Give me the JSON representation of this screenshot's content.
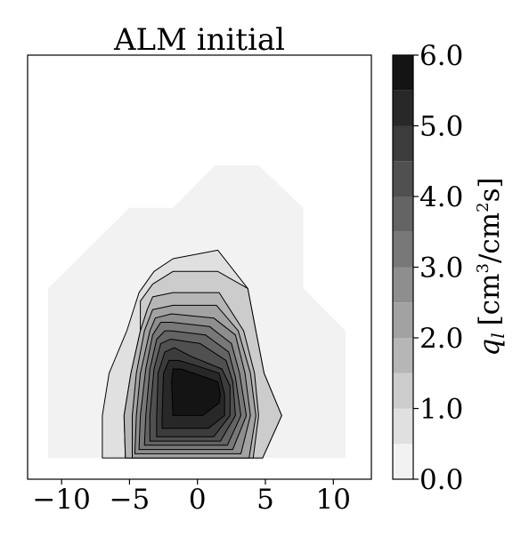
{
  "chart_data": {
    "type": "contourf",
    "title": "ALM initial",
    "xlabel": "",
    "ylabel": "",
    "xlim": [
      -12.5,
      12.8
    ],
    "ylim": [
      0,
      1
    ],
    "x_ticks": [
      -10,
      -5,
      0,
      5,
      10
    ],
    "x_tick_labels": [
      "−10",
      "−5",
      "0",
      "5",
      "10"
    ],
    "levels": [
      0.0,
      0.5,
      1.0,
      1.5,
      2.0,
      2.5,
      3.0,
      3.5,
      4.0,
      4.5,
      5.0,
      5.5,
      6.0
    ],
    "level_colors": [
      "#f2f2f2",
      "#e0e0e0",
      "#cccccc",
      "#b6b6b6",
      "#a2a2a2",
      "#8e8e8e",
      "#787878",
      "#646464",
      "#505050",
      "#3c3c3c",
      "#282828",
      "#141414"
    ],
    "contour_regions": [
      {
        "level": 0.0,
        "outline": false,
        "points": [
          [
            -11,
            0.05
          ],
          [
            -11,
            0.45
          ],
          [
            -5,
            0.64
          ],
          [
            -1.8,
            0.64
          ],
          [
            1.3,
            0.74
          ],
          [
            4.5,
            0.74
          ],
          [
            7.8,
            0.64
          ],
          [
            7.8,
            0.45
          ],
          [
            10.9,
            0.35
          ],
          [
            10.9,
            0.05
          ]
        ]
      },
      {
        "level": 0.5,
        "points": [
          [
            -7,
            0.05
          ],
          [
            -7,
            0.15
          ],
          [
            -6.5,
            0.25
          ],
          [
            -5.2,
            0.35
          ],
          [
            -4.3,
            0.44
          ],
          [
            -3.2,
            0.49
          ],
          [
            -1.8,
            0.52
          ],
          [
            1.5,
            0.54
          ],
          [
            3.7,
            0.45
          ],
          [
            4.3,
            0.35
          ],
          [
            4.9,
            0.25
          ],
          [
            6.2,
            0.15
          ],
          [
            4.8,
            0.05
          ]
        ]
      },
      {
        "level": 1.0,
        "points": [
          [
            -5.3,
            0.05
          ],
          [
            -5.4,
            0.15
          ],
          [
            -4.9,
            0.25
          ],
          [
            -4.2,
            0.35
          ],
          [
            -4.2,
            0.42
          ],
          [
            -3.3,
            0.46
          ],
          [
            -1.8,
            0.49
          ],
          [
            1.5,
            0.49
          ],
          [
            3.7,
            0.45
          ],
          [
            4.3,
            0.35
          ],
          [
            4.9,
            0.25
          ],
          [
            6.2,
            0.15
          ],
          [
            4.8,
            0.05
          ]
        ]
      },
      {
        "level": 1.5,
        "points": [
          [
            -5.3,
            0.05
          ],
          [
            -5.4,
            0.15
          ],
          [
            -4.9,
            0.25
          ],
          [
            -4.2,
            0.35
          ],
          [
            -3.7,
            0.4
          ],
          [
            -3.3,
            0.43
          ],
          [
            -1.8,
            0.44
          ],
          [
            1.6,
            0.44
          ],
          [
            3.4,
            0.35
          ],
          [
            4.2,
            0.25
          ],
          [
            4.5,
            0.15
          ],
          [
            4.1,
            0.05
          ]
        ]
      },
      {
        "level": 2.0,
        "points": [
          [
            -4.8,
            0.05
          ],
          [
            -4.8,
            0.15
          ],
          [
            -4.5,
            0.25
          ],
          [
            -3.9,
            0.35
          ],
          [
            -3.3,
            0.4
          ],
          [
            -1.8,
            0.41
          ],
          [
            1.4,
            0.41
          ],
          [
            3.0,
            0.35
          ],
          [
            3.9,
            0.25
          ],
          [
            4.3,
            0.15
          ],
          [
            3.8,
            0.05
          ]
        ]
      },
      {
        "level": 2.5,
        "points": [
          [
            -4.6,
            0.06
          ],
          [
            -4.5,
            0.15
          ],
          [
            -4.2,
            0.25
          ],
          [
            -3.5,
            0.35
          ],
          [
            -3.1,
            0.38
          ],
          [
            -1.9,
            0.39
          ],
          [
            1.2,
            0.38
          ],
          [
            2.8,
            0.34
          ],
          [
            3.5,
            0.25
          ],
          [
            3.9,
            0.15
          ],
          [
            3.2,
            0.06
          ]
        ]
      },
      {
        "level": 3.0,
        "points": [
          [
            -4.3,
            0.07
          ],
          [
            -4.2,
            0.15
          ],
          [
            -3.8,
            0.26
          ],
          [
            -3.3,
            0.34
          ],
          [
            -2.7,
            0.37
          ],
          [
            -1.9,
            0.37
          ],
          [
            0.9,
            0.36
          ],
          [
            2.5,
            0.32
          ],
          [
            3.1,
            0.25
          ],
          [
            3.6,
            0.15
          ],
          [
            2.6,
            0.07
          ]
        ]
      },
      {
        "level": 3.5,
        "points": [
          [
            -3.9,
            0.08
          ],
          [
            -3.8,
            0.15
          ],
          [
            -3.5,
            0.26
          ],
          [
            -3.0,
            0.33
          ],
          [
            -2.4,
            0.35
          ],
          [
            -1.9,
            0.35
          ],
          [
            0.6,
            0.34
          ],
          [
            2.3,
            0.3
          ],
          [
            2.8,
            0.24
          ],
          [
            3.2,
            0.15
          ],
          [
            2.2,
            0.08
          ]
        ]
      },
      {
        "level": 4.0,
        "points": [
          [
            -3.5,
            0.09
          ],
          [
            -3.5,
            0.15
          ],
          [
            -3.2,
            0.26
          ],
          [
            -2.7,
            0.32
          ],
          [
            -2.0,
            0.33
          ],
          [
            -1.9,
            0.33
          ],
          [
            0.2,
            0.32
          ],
          [
            2.1,
            0.28
          ],
          [
            2.6,
            0.23
          ],
          [
            2.8,
            0.15
          ],
          [
            1.7,
            0.09
          ]
        ]
      },
      {
        "level": 4.5,
        "points": [
          [
            -3.0,
            0.1
          ],
          [
            -3.0,
            0.15
          ],
          [
            -2.9,
            0.25
          ],
          [
            -2.4,
            0.3
          ],
          [
            -1.7,
            0.31
          ],
          [
            -0.5,
            0.29
          ],
          [
            1.8,
            0.26
          ],
          [
            2.4,
            0.22
          ],
          [
            2.4,
            0.15
          ],
          [
            1.2,
            0.1
          ]
        ]
      },
      {
        "level": 5.0,
        "points": [
          [
            -2.6,
            0.12
          ],
          [
            -2.6,
            0.15
          ],
          [
            -2.5,
            0.25
          ],
          [
            -2.1,
            0.28
          ],
          [
            -1.4,
            0.28
          ],
          [
            -0.3,
            0.27
          ],
          [
            1.6,
            0.25
          ],
          [
            2.0,
            0.2
          ],
          [
            2.0,
            0.15
          ],
          [
            0.8,
            0.12
          ]
        ]
      },
      {
        "level": 5.5,
        "points": [
          [
            -1.8,
            0.15
          ],
          [
            -1.9,
            0.23
          ],
          [
            -1.8,
            0.26
          ],
          [
            -1.2,
            0.26
          ],
          [
            0.6,
            0.24
          ],
          [
            1.5,
            0.23
          ],
          [
            1.7,
            0.2
          ],
          [
            1.6,
            0.18
          ],
          [
            0.4,
            0.15
          ],
          [
            -0.6,
            0.15
          ]
        ]
      }
    ],
    "colorbar": {
      "label": "q_l [cm³/cm²s]",
      "label_main": "q",
      "label_sub": "l",
      "label_unit_open": "[cm",
      "label_exp1": "3",
      "label_unit_mid": "/cm",
      "label_exp2": "2",
      "label_unit_close": "s]",
      "range": [
        0.0,
        6.0
      ],
      "ticks": [
        0.0,
        1.0,
        2.0,
        3.0,
        4.0,
        5.0,
        6.0
      ],
      "tick_labels": [
        "0.0",
        "1.0",
        "2.0",
        "3.0",
        "4.0",
        "5.0",
        "6.0"
      ]
    }
  }
}
